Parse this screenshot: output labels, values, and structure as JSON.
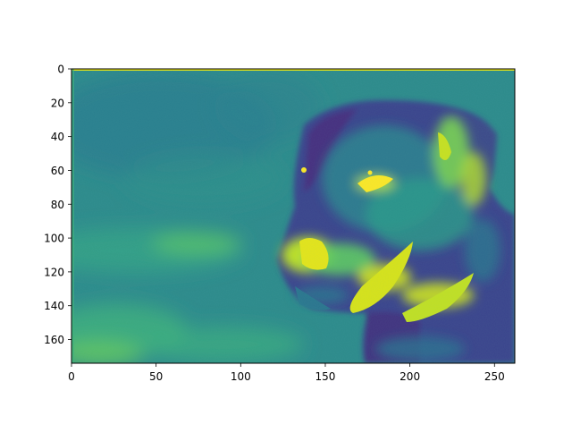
{
  "chart_data": {
    "type": "heatmap",
    "title": "",
    "xlabel": "",
    "ylabel": "",
    "colormap": "viridis",
    "image_size": [
      262,
      174
    ],
    "xlim": [
      0,
      262
    ],
    "ylim": [
      174,
      0
    ],
    "x_ticks": [
      {
        "value": 0,
        "label": "0"
      },
      {
        "value": 50,
        "label": "50"
      },
      {
        "value": 100,
        "label": "100"
      },
      {
        "value": 150,
        "label": "150"
      },
      {
        "value": 200,
        "label": "200"
      },
      {
        "value": 250,
        "label": "250"
      }
    ],
    "y_ticks": [
      {
        "value": 0,
        "label": "0"
      },
      {
        "value": 20,
        "label": "20"
      },
      {
        "value": 40,
        "label": "40"
      },
      {
        "value": 60,
        "label": "60"
      },
      {
        "value": 80,
        "label": "80"
      },
      {
        "value": 100,
        "label": "100"
      },
      {
        "value": 120,
        "label": "120"
      },
      {
        "value": 140,
        "label": "140"
      },
      {
        "value": 160,
        "label": "160"
      }
    ],
    "colors": {
      "low": "#440154",
      "background": "#2f8f8a",
      "mid": "#21918c",
      "bright": "#5ec962",
      "high": "#fde725"
    },
    "content": "dog-portrait-image"
  }
}
